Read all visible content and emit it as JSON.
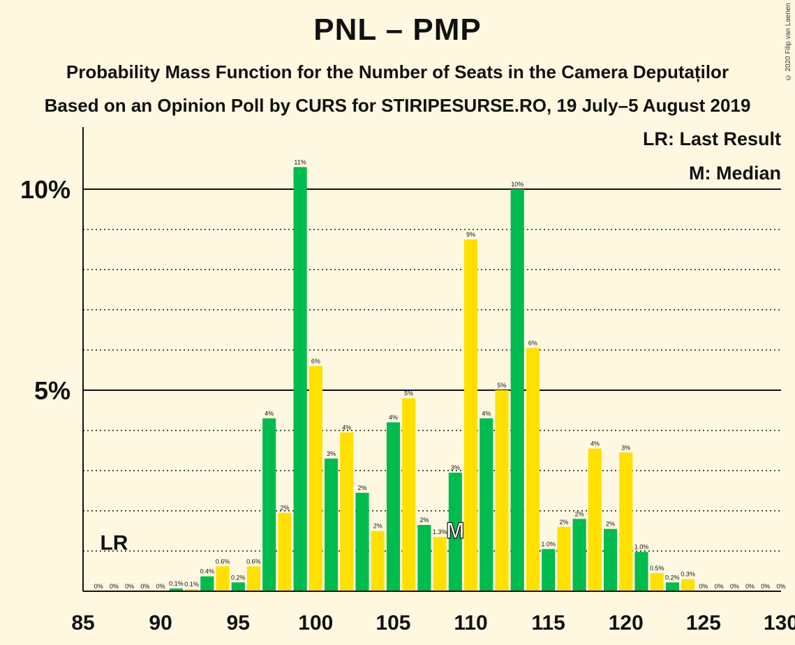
{
  "header": {
    "title": "PNL – PMP",
    "subtitle": "Probability Mass Function for the Number of Seats in the Camera Deputaților",
    "subtitle2": "Based on an Opinion Poll by CURS for STIRIPESURSE.RO, 19 July–5 August 2019",
    "copyright": "© 2020 Filip van Laenen"
  },
  "legend": {
    "lr": "LR: Last Result",
    "m": "M: Median"
  },
  "markers": {
    "lr_label": "LR",
    "lr_seat": 87,
    "median_label": "M",
    "median_seat": 109
  },
  "colors": {
    "background": "#fff8e1",
    "green": "#00bb4e",
    "yellow": "#ffe000",
    "axis": "#111111",
    "text": "#111111"
  },
  "chart_data": {
    "type": "bar",
    "xlim": [
      85,
      130
    ],
    "ylim": [
      0,
      11.5
    ],
    "x_ticks": [
      85,
      90,
      95,
      100,
      105,
      110,
      115,
      120,
      125,
      130
    ],
    "y_ticks": [
      {
        "value": 5,
        "label": "5%"
      },
      {
        "value": 10,
        "label": "10%"
      }
    ],
    "minor_gridlines": [
      1,
      2,
      3,
      4,
      6,
      7,
      8,
      9
    ],
    "bar_color_rule": "odd seat = green, even seat = yellow",
    "seats": [
      86,
      87,
      88,
      89,
      90,
      91,
      92,
      93,
      94,
      95,
      96,
      97,
      98,
      99,
      100,
      101,
      102,
      103,
      104,
      105,
      106,
      107,
      108,
      109,
      110,
      111,
      112,
      113,
      114,
      115,
      116,
      117,
      118,
      119,
      120,
      121,
      122,
      123,
      124,
      125,
      126,
      127,
      128,
      129,
      130
    ],
    "values": [
      0,
      0,
      0,
      0,
      0,
      0.07,
      0.05,
      0.37,
      0.62,
      0.22,
      0.62,
      4.3,
      1.95,
      10.55,
      5.6,
      3.3,
      3.95,
      2.45,
      1.5,
      4.2,
      4.8,
      1.65,
      1.35,
      2.95,
      8.75,
      4.3,
      5.0,
      10.0,
      6.05,
      1.05,
      1.6,
      1.8,
      3.55,
      1.55,
      3.45,
      0.98,
      0.45,
      0.22,
      0.3,
      0,
      0,
      0,
      0,
      0,
      0
    ],
    "labels": [
      "0%",
      "0%",
      "0%",
      "0%",
      "0%",
      "0.1%",
      "0.1%",
      "0.4%",
      "0.6%",
      "0.2%",
      "0.6%",
      "4%",
      "2%",
      "11%",
      "6%",
      "3%",
      "4%",
      "2%",
      "2%",
      "4%",
      "5%",
      "2%",
      "1.3%",
      "3%",
      "9%",
      "4%",
      "5%",
      "10%",
      "6%",
      "1.0%",
      "2%",
      "2%",
      "4%",
      "2%",
      "3%",
      "1.0%",
      "0.5%",
      "0.2%",
      "0.3%",
      "0%",
      "0%",
      "0%",
      "0%",
      "0%",
      "0%"
    ]
  }
}
